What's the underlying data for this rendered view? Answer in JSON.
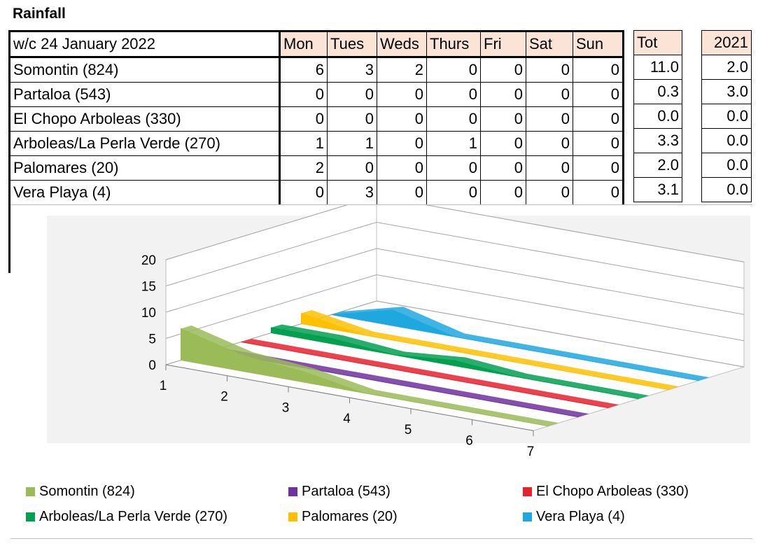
{
  "title": "Rainfall",
  "table": {
    "header": "w/c 24 January 2022",
    "days": [
      "Mon",
      "Tues",
      "Weds",
      "Thurs",
      "Fri",
      "Sat",
      "Sun"
    ],
    "rows": [
      {
        "site": "Somontin (824)",
        "values": [
          "6",
          "3",
          "2",
          "0",
          "0",
          "0",
          "0"
        ]
      },
      {
        "site": "Partaloa (543)",
        "values": [
          "0",
          "0",
          "0",
          "0",
          "0",
          "0",
          "0"
        ]
      },
      {
        "site": "El Chopo Arboleas (330)",
        "values": [
          "0",
          "0",
          "0",
          "0",
          "0",
          "0",
          "0"
        ]
      },
      {
        "site": "Arboleas/La Perla Verde (270)",
        "values": [
          "1",
          "1",
          "0",
          "1",
          "0",
          "0",
          "0"
        ]
      },
      {
        "site": "Palomares (20)",
        "values": [
          "2",
          "0",
          "0",
          "0",
          "0",
          "0",
          "0"
        ]
      },
      {
        "site": "Vera Playa (4)",
        "values": [
          "0",
          "3",
          "0",
          "0",
          "0",
          "0",
          "0"
        ]
      }
    ],
    "tot_header": "Tot",
    "totals": [
      "11.0",
      "0.3",
      "0.0",
      "3.3",
      "2.0",
      "3.1"
    ],
    "prev_header": "2021",
    "prev": [
      "2.0",
      "3.0",
      "0.0",
      "0.0",
      "0.0",
      "0.0"
    ]
  },
  "chart_data": {
    "type": "area",
    "categories": [
      "1",
      "2",
      "3",
      "4",
      "5",
      "6",
      "7"
    ],
    "ylim": [
      0,
      20
    ],
    "yticks": [
      "0",
      "5",
      "10",
      "15",
      "20"
    ],
    "grid": true,
    "legend_position": "bottom",
    "series": [
      {
        "name": "Somontin (824)",
        "color": "#9bbb59",
        "values": [
          6,
          3,
          2,
          0,
          0,
          0,
          0
        ]
      },
      {
        "name": "Partaloa (543)",
        "color": "#7030a0",
        "values": [
          0,
          0,
          0,
          0,
          0,
          0,
          0
        ]
      },
      {
        "name": "El Chopo Arboleas (330)",
        "color": "#e8212e",
        "values": [
          0,
          0,
          0,
          0,
          0,
          0,
          0
        ]
      },
      {
        "name": "Arboleas/La Perla Verde (270)",
        "color": "#00a050",
        "values": [
          1,
          1,
          0,
          1,
          0,
          0,
          0
        ]
      },
      {
        "name": "Palomares (20)",
        "color": "#ffc000",
        "values": [
          2,
          0,
          0,
          0,
          0,
          0,
          0
        ]
      },
      {
        "name": "Vera Playa (4)",
        "color": "#1fa8e0",
        "values": [
          0,
          3,
          0,
          0,
          0,
          0,
          0
        ]
      }
    ]
  }
}
